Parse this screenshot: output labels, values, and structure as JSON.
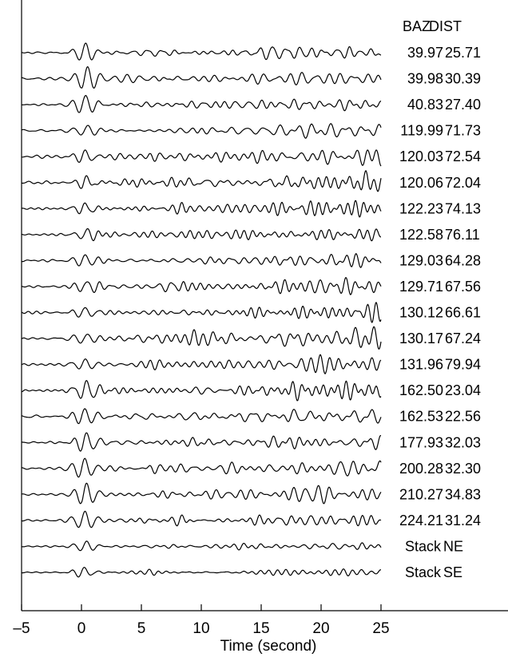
{
  "chart_data": {
    "type": "line",
    "title": "",
    "xlabel": "Time (second)",
    "ylabel": "",
    "xlim": [
      -5,
      25
    ],
    "xticks": [
      -5,
      0,
      5,
      10,
      15,
      20,
      25
    ],
    "xtick_labels": [
      "-5",
      "0",
      "5",
      "10",
      "15",
      "20",
      "25"
    ],
    "grid": false,
    "column_headers": [
      "BAZ",
      "DIST"
    ],
    "traces": [
      {
        "baz": "39.97",
        "dist": "25.71"
      },
      {
        "baz": "39.98",
        "dist": "30.39"
      },
      {
        "baz": "40.83",
        "dist": "27.40"
      },
      {
        "baz": "119.99",
        "dist": "71.73"
      },
      {
        "baz": "120.03",
        "dist": "72.54"
      },
      {
        "baz": "120.06",
        "dist": "72.04"
      },
      {
        "baz": "122.23",
        "dist": "74.13"
      },
      {
        "baz": "122.58",
        "dist": "76.11"
      },
      {
        "baz": "129.03",
        "dist": "64.28"
      },
      {
        "baz": "129.71",
        "dist": "67.56"
      },
      {
        "baz": "130.12",
        "dist": "66.61"
      },
      {
        "baz": "130.17",
        "dist": "67.24"
      },
      {
        "baz": "131.96",
        "dist": "79.94"
      },
      {
        "baz": "162.50",
        "dist": "23.04"
      },
      {
        "baz": "162.53",
        "dist": "22.56"
      },
      {
        "baz": "177.93",
        "dist": "32.03"
      },
      {
        "baz": "200.28",
        "dist": "32.30"
      },
      {
        "baz": "210.27",
        "dist": "34.83"
      },
      {
        "baz": "224.21",
        "dist": "31.24"
      },
      {
        "baz": "Stack",
        "dist": "NE"
      },
      {
        "baz": "Stack",
        "dist": "SE"
      }
    ]
  }
}
